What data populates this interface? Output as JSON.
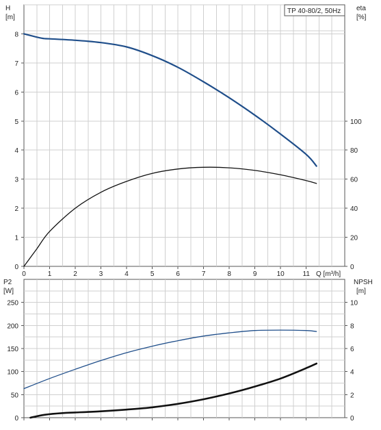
{
  "legend_box": "TP 40-80/2, 50Hz",
  "chart_data": [
    {
      "type": "line",
      "panel": "top",
      "legend_text": "TP 40-80/2, 50Hz",
      "xlabel": "Q [m³/h]",
      "ylabel": "H",
      "yunit": "[m]",
      "y2label": "eta",
      "y2unit": "[%]",
      "xlim": [
        0,
        12.5
      ],
      "ylim": [
        0,
        9
      ],
      "y2lim": [
        0,
        180
      ],
      "grid": true,
      "x_ticks": [
        "0",
        "1",
        "2",
        "3",
        "4",
        "5",
        "6",
        "7",
        "8",
        "9",
        "10",
        "11"
      ],
      "y_ticks": [
        "0",
        "1",
        "2",
        "3",
        "4",
        "5",
        "6",
        "7",
        "8"
      ],
      "y2_ticks": [
        "0",
        "20",
        "40",
        "60",
        "80",
        "100"
      ],
      "series": [
        {
          "axis": "left",
          "color": "#1f4e8a",
          "x": [
            0,
            0.7,
            1,
            2,
            3,
            4,
            5,
            6,
            7,
            8,
            9,
            10,
            11,
            11.4
          ],
          "y": [
            8.0,
            7.85,
            7.83,
            7.78,
            7.7,
            7.55,
            7.25,
            6.85,
            6.35,
            5.8,
            5.2,
            4.55,
            3.85,
            3.45
          ]
        },
        {
          "axis": "right",
          "color": "#111111",
          "x": [
            0,
            0.5,
            1,
            2,
            3,
            4,
            5,
            6,
            7,
            8,
            9,
            10,
            11,
            11.4
          ],
          "y": [
            0,
            12,
            24,
            40,
            51,
            58.5,
            64,
            67,
            68.2,
            67.8,
            66,
            63,
            59,
            57
          ]
        }
      ]
    },
    {
      "type": "line",
      "panel": "bottom",
      "ylabel": "P2",
      "yunit": "[W]",
      "y2label": "NPSH",
      "y2unit": "[m]",
      "xlim": [
        0,
        12.5
      ],
      "ylim": [
        0,
        300
      ],
      "y2lim": [
        0,
        12
      ],
      "grid": true,
      "y_ticks": [
        "0",
        "50",
        "100",
        "150",
        "200",
        "250"
      ],
      "y2_ticks": [
        "0",
        "2",
        "4",
        "6",
        "8",
        "10"
      ],
      "series": [
        {
          "axis": "left",
          "color": "#1f4e8a",
          "x": [
            0,
            1,
            2,
            3,
            4,
            5,
            6,
            7,
            8,
            9,
            10,
            11,
            11.4
          ],
          "y": [
            63,
            85,
            105,
            124,
            141,
            155,
            167,
            177,
            184,
            189,
            190,
            189,
            187
          ]
        },
        {
          "axis": "right",
          "color": "#111111",
          "x": [
            0.25,
            0.8,
            1.5,
            2,
            3,
            4,
            5,
            6,
            7,
            8,
            9,
            10,
            11,
            11.4
          ],
          "y": [
            0,
            0.25,
            0.4,
            0.45,
            0.55,
            0.7,
            0.9,
            1.2,
            1.6,
            2.1,
            2.7,
            3.4,
            4.3,
            4.7
          ]
        }
      ]
    }
  ]
}
